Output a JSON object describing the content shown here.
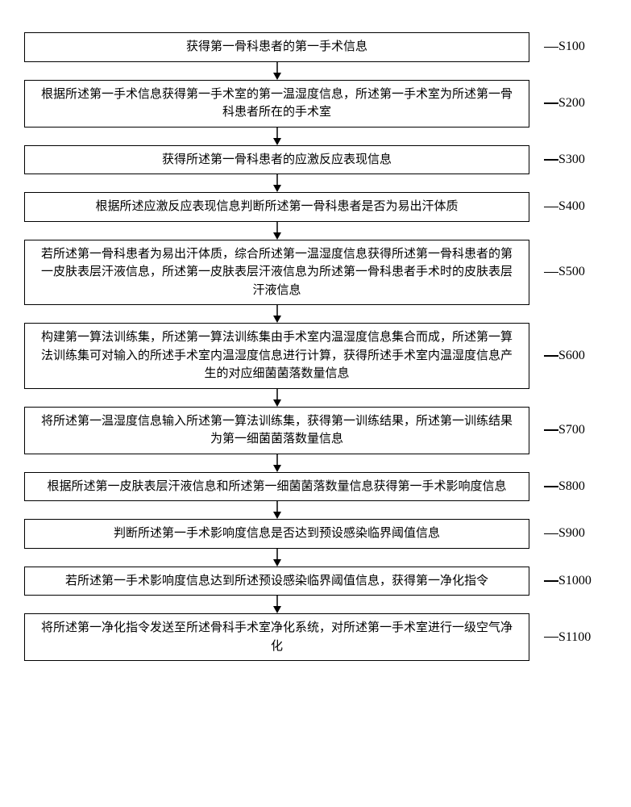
{
  "flowchart": {
    "box_border_color": "#000000",
    "box_background": "#ffffff",
    "text_color": "#000000",
    "font_family": "SimSun",
    "box_font_size": 15,
    "label_font_size": 16,
    "arrow_color": "#000000",
    "line_width": 1.5,
    "steps": [
      {
        "label": "S100",
        "text": "获得第一骨科患者的第一手术信息"
      },
      {
        "label": "S200",
        "text": "根据所述第一手术信息获得第一手术室的第一温湿度信息，所述第一手术室为所述第一骨科患者所在的手术室"
      },
      {
        "label": "S300",
        "text": "获得所述第一骨科患者的应激反应表现信息"
      },
      {
        "label": "S400",
        "text": "根据所述应激反应表现信息判断所述第一骨科患者是否为易出汗体质"
      },
      {
        "label": "S500",
        "text": "若所述第一骨科患者为易出汗体质，综合所述第一温湿度信息获得所述第一骨科患者的第一皮肤表层汗液信息，所述第一皮肤表层汗液信息为所述第一骨科患者手术时的皮肤表层汗液信息"
      },
      {
        "label": "S600",
        "text": "构建第一算法训练集，所述第一算法训练集由手术室内温湿度信息集合而成，所述第一算法训练集可对输入的所述手术室内温湿度信息进行计算，获得所述手术室内温湿度信息产生的对应细菌菌落数量信息"
      },
      {
        "label": "S700",
        "text": "将所述第一温湿度信息输入所述第一算法训练集，获得第一训练结果，所述第一训练结果为第一细菌菌落数量信息"
      },
      {
        "label": "S800",
        "text": "根据所述第一皮肤表层汗液信息和所述第一细菌菌落数量信息获得第一手术影响度信息"
      },
      {
        "label": "S900",
        "text": "判断所述第一手术影响度信息是否达到预设感染临界阈值信息"
      },
      {
        "label": "S1000",
        "text": "若所述第一手术影响度信息达到所述预设感染临界阈值信息，获得第一净化指令"
      },
      {
        "label": "S1100",
        "text": "将所述第一净化指令发送至所述骨科手术室净化系统，对所述第一手术室进行一级空气净化"
      }
    ]
  }
}
